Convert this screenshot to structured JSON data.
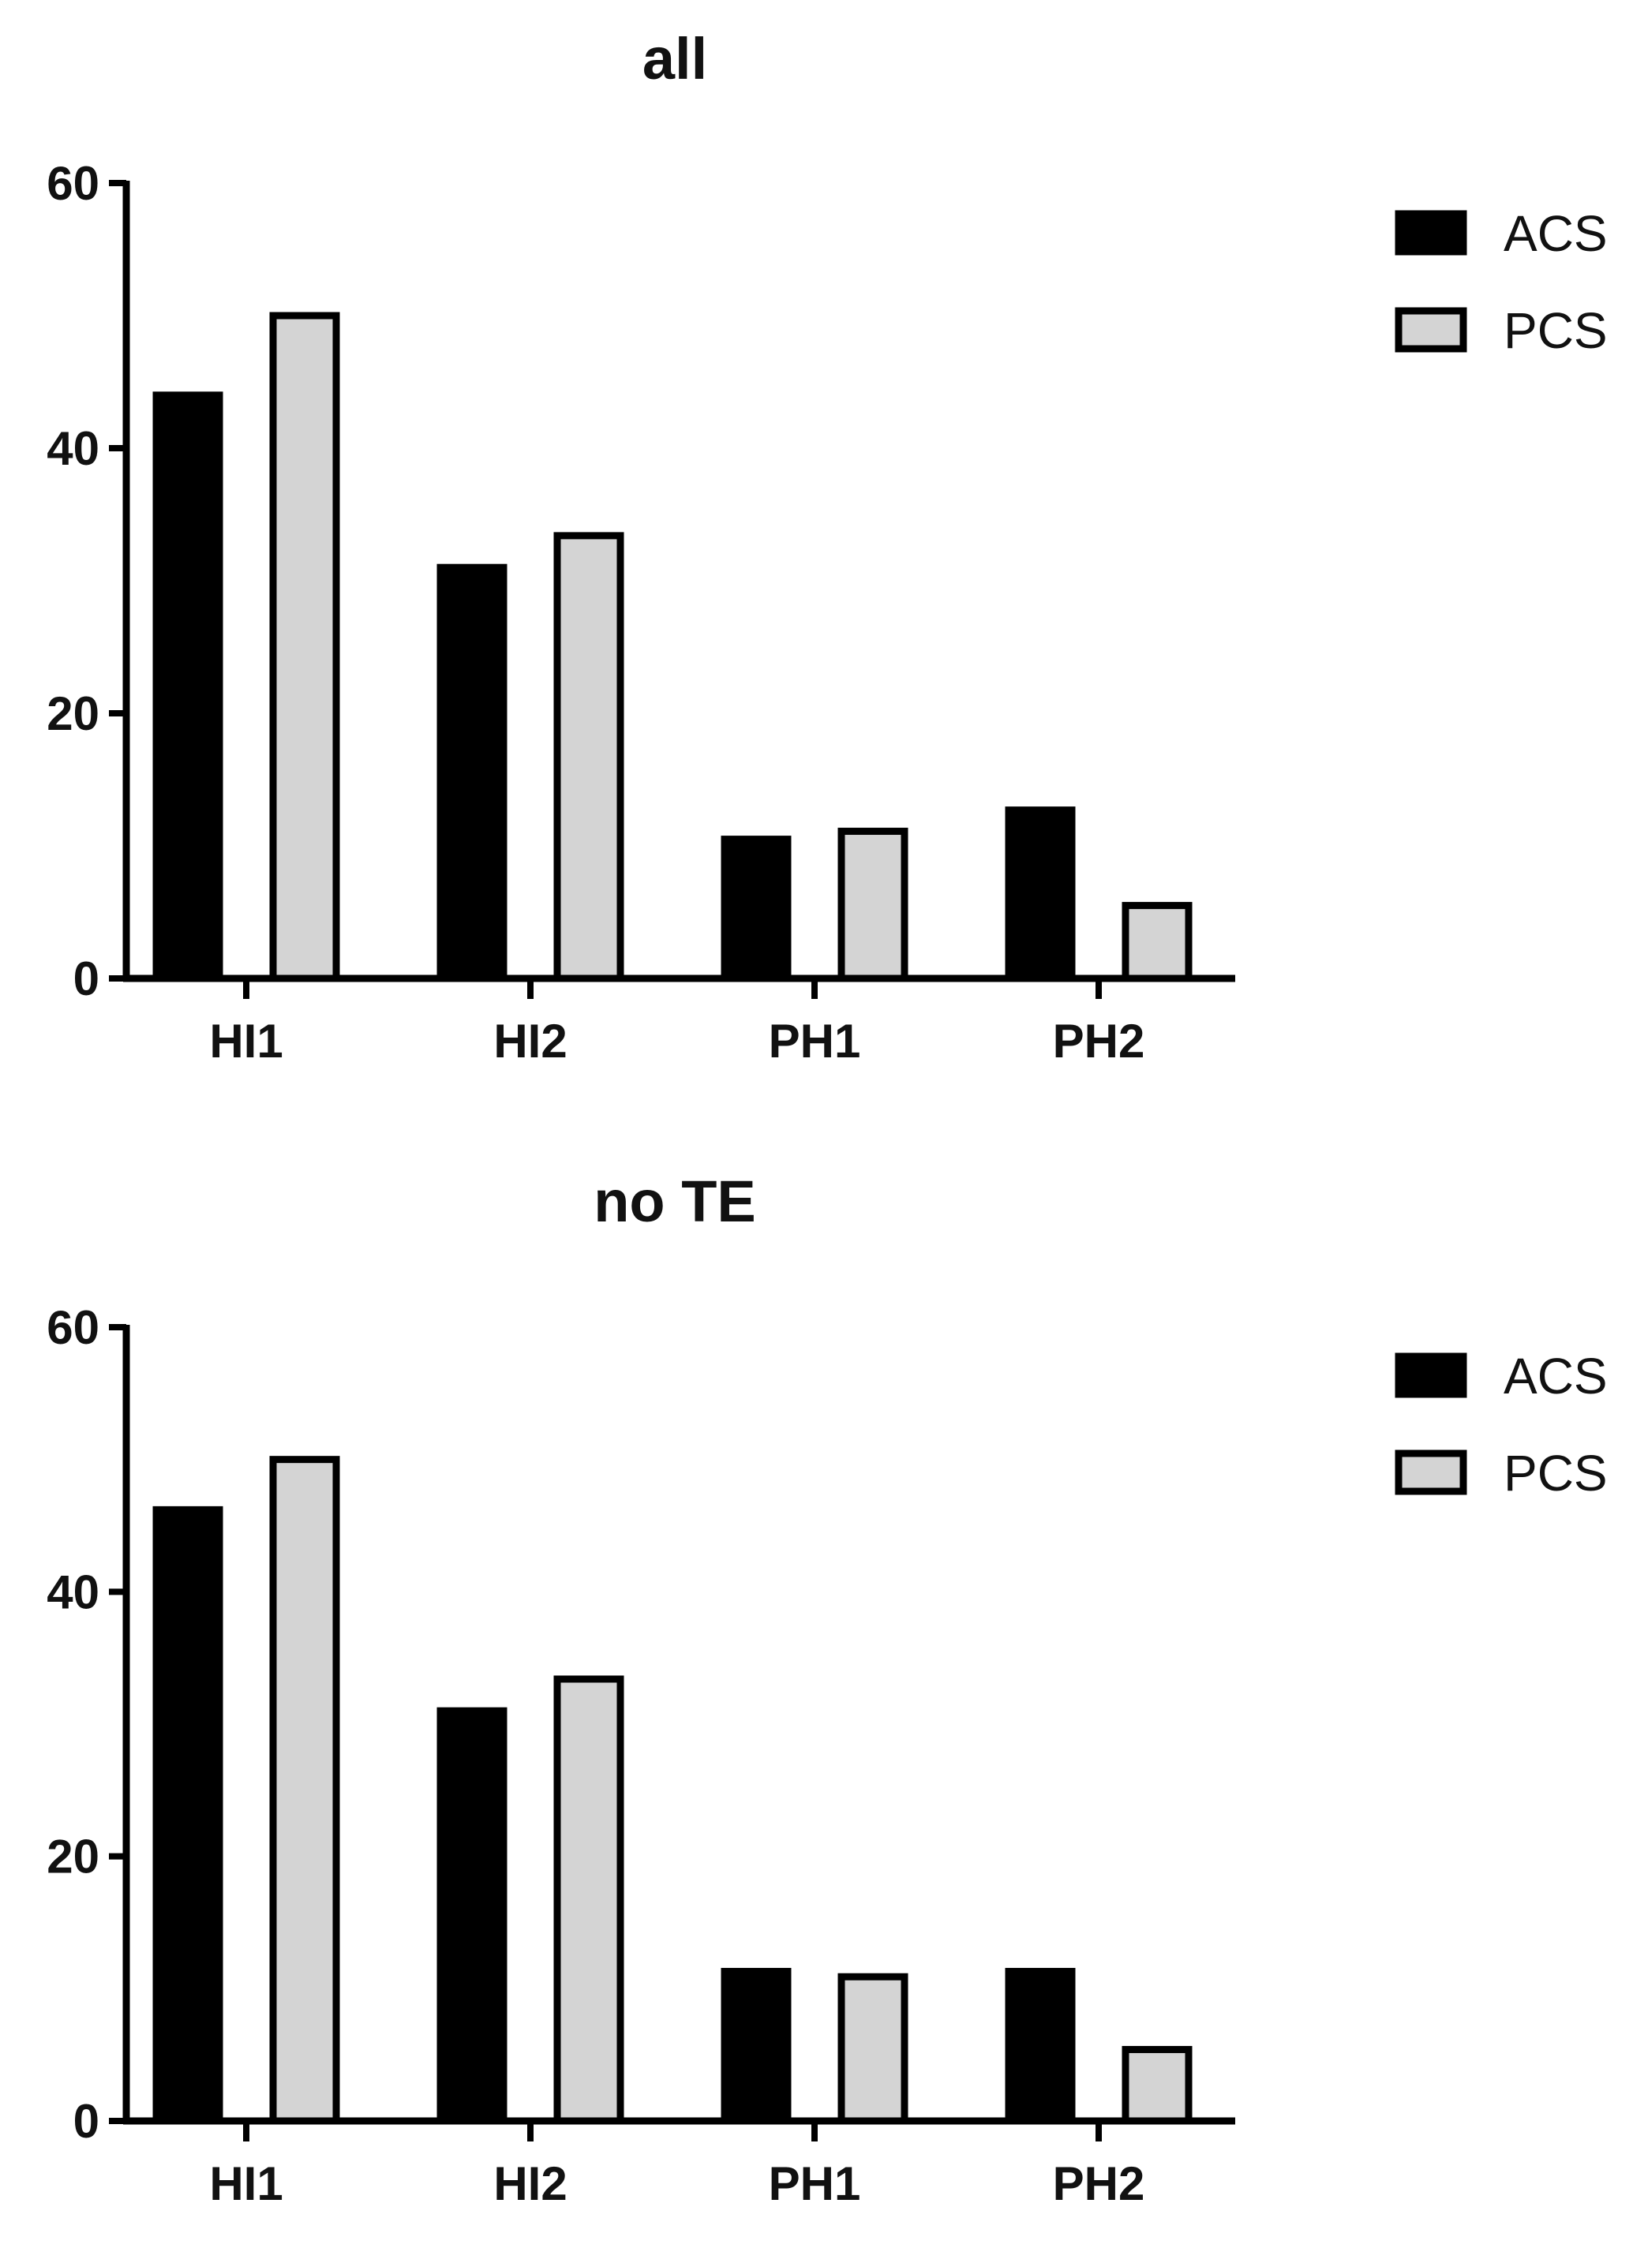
{
  "chart_data": [
    {
      "type": "bar",
      "title": "all",
      "categories": [
        "HI1",
        "HI2",
        "PH1",
        "PH2"
      ],
      "series": [
        {
          "name": "ACS",
          "color": "#000000",
          "values": [
            44,
            31,
            10.5,
            12.7
          ]
        },
        {
          "name": "PCS",
          "color": "#d4d4d4",
          "values": [
            50,
            33.4,
            11.1,
            5.5
          ]
        }
      ],
      "yticks": [
        0,
        20,
        40,
        60
      ],
      "ylim": [
        0,
        60
      ],
      "xlabel": "",
      "ylabel": "",
      "legend": "top-right",
      "grid": false
    },
    {
      "type": "bar",
      "title": "no TE",
      "categories": [
        "HI1",
        "HI2",
        "PH1",
        "PH2"
      ],
      "series": [
        {
          "name": "ACS",
          "color": "#000000",
          "values": [
            46.2,
            31,
            11.3,
            11.3
          ]
        },
        {
          "name": "PCS",
          "color": "#d4d4d4",
          "values": [
            50,
            33.4,
            10.9,
            5.4
          ]
        }
      ],
      "yticks": [
        0,
        20,
        40,
        60
      ],
      "ylim": [
        0,
        60
      ],
      "xlabel": "",
      "ylabel": "",
      "legend": "top-right",
      "grid": false
    }
  ]
}
